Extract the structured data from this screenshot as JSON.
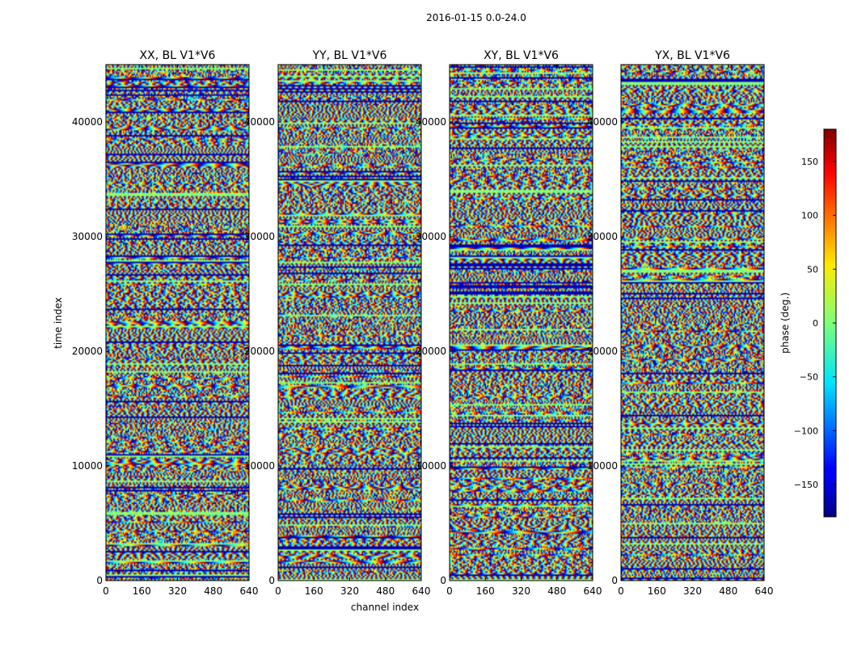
{
  "figure": {
    "suptitle": "2016-01-15 0.0-24.0"
  },
  "chart_data": {
    "type": "heatmap",
    "colormap": "jet",
    "xlabel": "channel index",
    "ylabel": "time index",
    "xlim": [
      0,
      640
    ],
    "ylim": [
      0,
      45000
    ],
    "xticks": [
      0,
      160,
      320,
      480,
      640
    ],
    "yticks": [
      0,
      10000,
      20000,
      30000,
      40000
    ],
    "xtick_labels": [
      "0",
      "160",
      "320",
      "480",
      "640"
    ],
    "ytick_labels": [
      "0",
      "10000",
      "20000",
      "30000",
      "40000"
    ],
    "panels": [
      {
        "title": "XX, BL V1*V6",
        "seed": 11
      },
      {
        "title": "YY, BL V1*V6",
        "seed": 23
      },
      {
        "title": "XY, BL V1*V6",
        "seed": 37
      },
      {
        "title": "YX, BL V1*V6",
        "seed": 53
      }
    ],
    "colorbar": {
      "label": "phase (deg.)",
      "range": [
        -180,
        180
      ],
      "ticks": [
        150,
        100,
        50,
        0,
        -50,
        -100,
        -150
      ],
      "tick_labels": [
        "150",
        "100",
        "50",
        "0",
        "−50",
        "−100",
        "−150"
      ]
    }
  }
}
